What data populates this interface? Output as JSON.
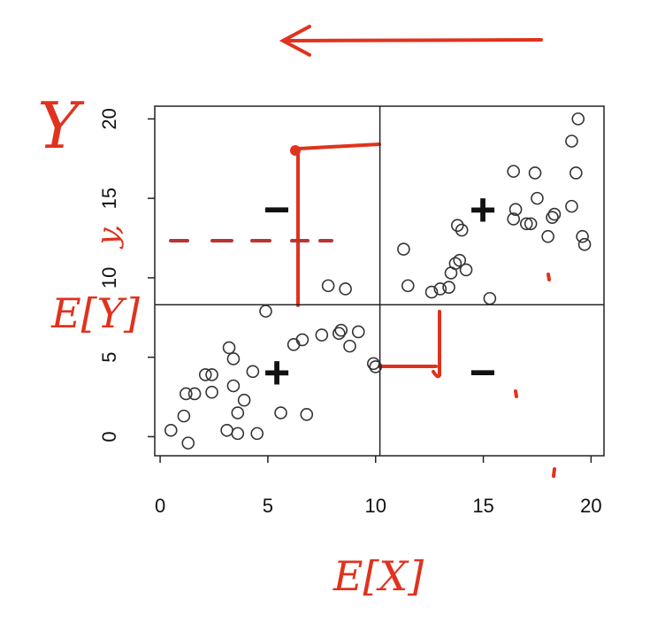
{
  "chart_data": {
    "type": "scatter",
    "x": [
      0.5,
      1.3,
      1.1,
      1.2,
      1.6,
      2.1,
      2.4,
      2.4,
      3.2,
      3.4,
      3.4,
      3.1,
      3.6,
      3.6,
      3.9,
      4.5,
      4.3,
      4.9,
      5.6,
      6.2,
      6.6,
      6.8,
      7.5,
      8.3,
      8.4,
      8.8,
      9.2,
      9.9,
      10.0,
      7.8,
      8.6,
      11.3,
      11.5,
      12.6,
      13.0,
      13.4,
      13.5,
      13.7,
      13.9,
      13.8,
      14.0,
      14.2,
      15.3,
      16.4,
      16.4,
      16.5,
      17.0,
      17.2,
      17.4,
      17.5,
      18.0,
      18.2,
      18.3,
      19.1,
      19.1,
      19.3,
      19.4,
      19.6,
      19.7
    ],
    "values": [
      0.4,
      -0.4,
      1.3,
      2.7,
      2.7,
      3.9,
      3.9,
      2.8,
      5.6,
      4.9,
      3.2,
      0.4,
      0.2,
      1.5,
      2.3,
      0.2,
      4.1,
      7.9,
      1.5,
      5.8,
      6.1,
      1.4,
      6.4,
      6.5,
      6.7,
      5.7,
      6.6,
      4.6,
      4.4,
      9.5,
      9.3,
      11.8,
      9.5,
      9.1,
      9.3,
      9.4,
      10.3,
      10.9,
      11.1,
      13.3,
      13.0,
      10.5,
      8.7,
      16.7,
      13.7,
      14.3,
      13.4,
      13.4,
      16.6,
      15.0,
      12.6,
      13.8,
      14.0,
      18.6,
      14.5,
      16.6,
      20.0,
      12.6,
      12.1
    ],
    "color": "#333333",
    "xlim": [
      -0.25,
      20.6
    ],
    "ylim": [
      -1.2,
      20.8
    ],
    "xticks": [
      0,
      5,
      10,
      15,
      20
    ],
    "yticks": [
      0,
      5,
      10,
      15,
      20
    ],
    "mean_x": 10.2,
    "mean_y": 8.3,
    "quadrant_signs": [
      "−",
      "+",
      "+",
      "−"
    ],
    "handwritten": [
      "Y",
      "y,",
      "E[Y]",
      "E[X]"
    ]
  }
}
